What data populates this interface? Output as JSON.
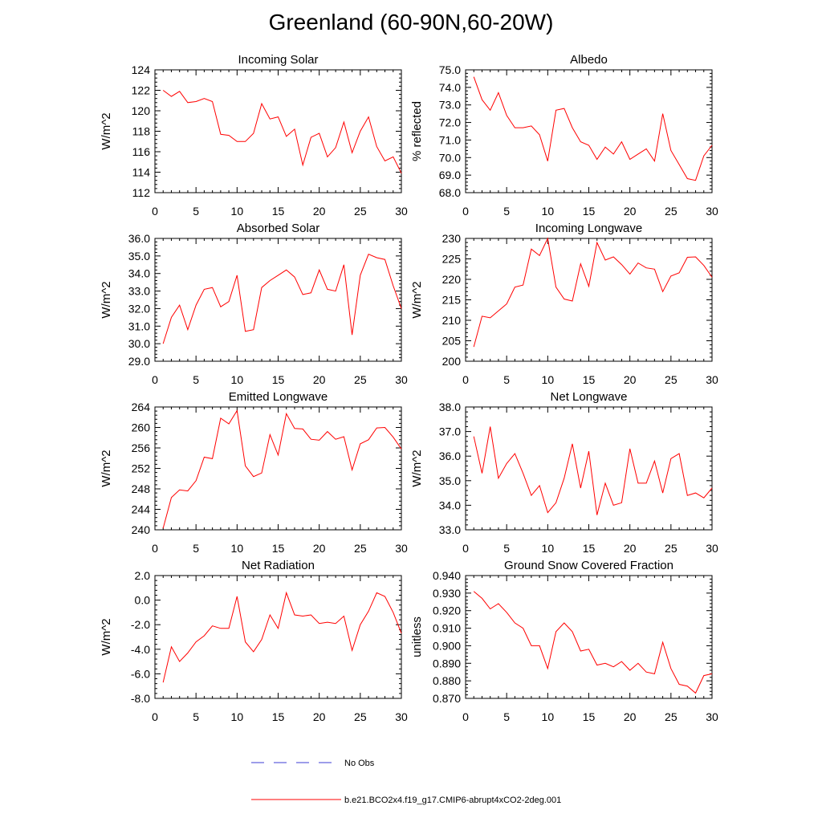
{
  "title": "Greenland (60-90N,60-20W)",
  "legend": [
    {
      "label": "No Obs",
      "color": "#3b3bd6",
      "dash": true
    },
    {
      "label": "b.e21.BCO2x4.f19_g17.CMIP6-abrupt4xCO2-2deg.001",
      "color": "#ff0000",
      "dash": false
    }
  ],
  "chart_data": [
    {
      "type": "line",
      "title": "Incoming Solar",
      "ylabel": "W/m^2",
      "xlim": [
        0,
        30
      ],
      "ylim": [
        112,
        124
      ],
      "xticks": [
        0,
        5,
        10,
        15,
        20,
        25,
        30
      ],
      "yticks": [
        112,
        114,
        116,
        118,
        120,
        122,
        124
      ],
      "ytick_labels": [
        "112",
        "114",
        "116",
        "118",
        "120",
        "122",
        "124"
      ],
      "series": [
        {
          "name": "b.e21.BCO2x4.f19_g17.CMIP6-abrupt4xCO2-2deg.001",
          "color": "#ff0000",
          "x": [
            1,
            2,
            3,
            4,
            5,
            6,
            7,
            8,
            9,
            10,
            11,
            12,
            13,
            14,
            15,
            16,
            17,
            18,
            19,
            20,
            21,
            22,
            23,
            24,
            25,
            26,
            27,
            28,
            29,
            30
          ],
          "y": [
            122.0,
            121.4,
            121.9,
            120.8,
            120.9,
            121.2,
            120.9,
            117.7,
            117.6,
            117.0,
            117.0,
            117.8,
            120.7,
            119.2,
            119.4,
            117.5,
            118.2,
            114.7,
            117.4,
            117.8,
            115.5,
            116.4,
            118.9,
            115.9,
            118.0,
            119.4,
            116.5,
            115.1,
            115.5,
            113.9
          ]
        }
      ]
    },
    {
      "type": "line",
      "title": "Albedo",
      "ylabel": "% reflected",
      "xlim": [
        0,
        30
      ],
      "ylim": [
        68.0,
        75.0
      ],
      "xticks": [
        0,
        5,
        10,
        15,
        20,
        25,
        30
      ],
      "yticks": [
        68,
        69,
        70,
        71,
        72,
        73,
        74,
        75
      ],
      "ytick_labels": [
        "68.0",
        "69.0",
        "70.0",
        "71.0",
        "72.0",
        "73.0",
        "74.0",
        "75.0"
      ],
      "series": [
        {
          "name": "b.e21.BCO2x4.f19_g17.CMIP6-abrupt4xCO2-2deg.001",
          "color": "#ff0000",
          "x": [
            1,
            2,
            3,
            4,
            5,
            6,
            7,
            8,
            9,
            10,
            11,
            12,
            13,
            14,
            15,
            16,
            17,
            18,
            19,
            20,
            21,
            22,
            23,
            24,
            25,
            26,
            27,
            28,
            29,
            30
          ],
          "y": [
            74.6,
            73.3,
            72.7,
            73.7,
            72.4,
            71.7,
            71.7,
            71.8,
            71.3,
            69.8,
            72.7,
            72.8,
            71.7,
            70.9,
            70.7,
            69.9,
            70.6,
            70.2,
            70.9,
            69.9,
            70.2,
            70.5,
            69.8,
            72.5,
            70.4,
            69.6,
            68.8,
            68.7,
            70.1,
            70.7
          ]
        }
      ]
    },
    {
      "type": "line",
      "title": "Absorbed Solar",
      "ylabel": "W/m^2",
      "xlim": [
        0,
        30
      ],
      "ylim": [
        29.0,
        36.0
      ],
      "xticks": [
        0,
        5,
        10,
        15,
        20,
        25,
        30
      ],
      "yticks": [
        29,
        30,
        31,
        32,
        33,
        34,
        35,
        36
      ],
      "ytick_labels": [
        "29.0",
        "30.0",
        "31.0",
        "32.0",
        "33.0",
        "34.0",
        "35.0",
        "36.0"
      ],
      "series": [
        {
          "name": "b.e21.BCO2x4.f19_g17.CMIP6-abrupt4xCO2-2deg.001",
          "color": "#ff0000",
          "x": [
            1,
            2,
            3,
            4,
            5,
            6,
            7,
            8,
            9,
            10,
            11,
            12,
            13,
            14,
            15,
            16,
            17,
            18,
            19,
            20,
            21,
            22,
            23,
            24,
            25,
            26,
            27,
            28,
            29,
            30
          ],
          "y": [
            30.0,
            31.5,
            32.2,
            30.8,
            32.2,
            33.1,
            33.2,
            32.1,
            32.4,
            33.9,
            30.7,
            30.8,
            33.2,
            33.6,
            33.9,
            34.2,
            33.8,
            32.8,
            32.9,
            34.2,
            33.1,
            33.0,
            34.5,
            30.5,
            33.9,
            35.1,
            34.9,
            34.8,
            33.3,
            32.0
          ]
        }
      ]
    },
    {
      "type": "line",
      "title": "Incoming Longwave",
      "ylabel": "W/m^2",
      "xlim": [
        0,
        30
      ],
      "ylim": [
        200,
        230
      ],
      "xticks": [
        0,
        5,
        10,
        15,
        20,
        25,
        30
      ],
      "yticks": [
        200,
        205,
        210,
        215,
        220,
        225,
        230
      ],
      "ytick_labels": [
        "200",
        "205",
        "210",
        "215",
        "220",
        "225",
        "230"
      ],
      "series": [
        {
          "name": "b.e21.BCO2x4.f19_g17.CMIP6-abrupt4xCO2-2deg.001",
          "color": "#ff0000",
          "x": [
            1,
            2,
            3,
            4,
            5,
            6,
            7,
            8,
            9,
            10,
            11,
            12,
            13,
            14,
            15,
            16,
            17,
            18,
            19,
            20,
            21,
            22,
            23,
            24,
            25,
            26,
            27,
            28,
            29,
            30
          ],
          "y": [
            203.5,
            211.0,
            210.6,
            212.3,
            214.0,
            218.1,
            218.6,
            227.4,
            225.8,
            230.0,
            218.1,
            215.2,
            214.7,
            223.8,
            218.3,
            229.0,
            224.7,
            225.5,
            223.6,
            221.3,
            224.0,
            222.8,
            222.5,
            217.0,
            220.8,
            221.6,
            225.4,
            225.5,
            223.4,
            220.5
          ]
        }
      ]
    },
    {
      "type": "line",
      "title": "Emitted Longwave",
      "ylabel": "W/m^2",
      "xlim": [
        0,
        30
      ],
      "ylim": [
        240,
        264
      ],
      "xticks": [
        0,
        5,
        10,
        15,
        20,
        25,
        30
      ],
      "yticks": [
        240,
        244,
        248,
        252,
        256,
        260,
        264
      ],
      "ytick_labels": [
        "240",
        "244",
        "248",
        "252",
        "256",
        "260",
        "264"
      ],
      "series": [
        {
          "name": "b.e21.BCO2x4.f19_g17.CMIP6-abrupt4xCO2-2deg.001",
          "color": "#ff0000",
          "x": [
            1,
            2,
            3,
            4,
            5,
            6,
            7,
            8,
            9,
            10,
            11,
            12,
            13,
            14,
            15,
            16,
            17,
            18,
            19,
            20,
            21,
            22,
            23,
            24,
            25,
            26,
            27,
            28,
            29,
            30
          ],
          "y": [
            240.3,
            246.3,
            247.8,
            247.6,
            249.6,
            254.2,
            253.9,
            261.8,
            260.7,
            263.3,
            252.5,
            250.4,
            251.1,
            258.6,
            254.6,
            262.7,
            259.8,
            259.7,
            257.7,
            257.5,
            259.2,
            257.7,
            258.2,
            251.7,
            256.8,
            257.6,
            259.9,
            260.0,
            258.1,
            255.8
          ]
        }
      ]
    },
    {
      "type": "line",
      "title": "Net Longwave",
      "ylabel": "W/m^2",
      "xlim": [
        0,
        30
      ],
      "ylim": [
        33.0,
        38.0
      ],
      "xticks": [
        0,
        5,
        10,
        15,
        20,
        25,
        30
      ],
      "yticks": [
        33,
        34,
        35,
        36,
        37,
        38
      ],
      "ytick_labels": [
        "33.0",
        "34.0",
        "35.0",
        "36.0",
        "37.0",
        "38.0"
      ],
      "series": [
        {
          "name": "b.e21.BCO2x4.f19_g17.CMIP6-abrupt4xCO2-2deg.001",
          "color": "#ff0000",
          "x": [
            1,
            2,
            3,
            4,
            5,
            6,
            7,
            8,
            9,
            10,
            11,
            12,
            13,
            14,
            15,
            16,
            17,
            18,
            19,
            20,
            21,
            22,
            23,
            24,
            25,
            26,
            27,
            28,
            29,
            30
          ],
          "y": [
            36.8,
            35.3,
            37.2,
            35.1,
            35.7,
            36.1,
            35.3,
            34.4,
            34.8,
            33.7,
            34.1,
            35.1,
            36.5,
            34.7,
            36.2,
            33.6,
            34.9,
            34.0,
            34.1,
            36.3,
            34.9,
            34.9,
            35.8,
            34.5,
            35.9,
            36.1,
            34.4,
            34.5,
            34.3,
            34.7
          ]
        }
      ]
    },
    {
      "type": "line",
      "title": "Net Radiation",
      "ylabel": "W/m^2",
      "xlim": [
        0,
        30
      ],
      "ylim": [
        -8.0,
        2.0
      ],
      "xticks": [
        0,
        5,
        10,
        15,
        20,
        25,
        30
      ],
      "yticks": [
        -8,
        -6,
        -4,
        -2,
        0,
        2
      ],
      "ytick_labels": [
        "-8.0",
        "-6.0",
        "-4.0",
        "-2.0",
        "0.0",
        "2.0"
      ],
      "series": [
        {
          "name": "b.e21.BCO2x4.f19_g17.CMIP6-abrupt4xCO2-2deg.001",
          "color": "#ff0000",
          "x": [
            1,
            2,
            3,
            4,
            5,
            6,
            7,
            8,
            9,
            10,
            11,
            12,
            13,
            14,
            15,
            16,
            17,
            18,
            19,
            20,
            21,
            22,
            23,
            24,
            25,
            26,
            27,
            28,
            29,
            30
          ],
          "y": [
            -6.7,
            -3.8,
            -5.0,
            -4.3,
            -3.4,
            -2.9,
            -2.1,
            -2.3,
            -2.3,
            0.3,
            -3.4,
            -4.2,
            -3.2,
            -1.2,
            -2.3,
            0.6,
            -1.2,
            -1.3,
            -1.2,
            -1.9,
            -1.8,
            -1.9,
            -1.3,
            -4.1,
            -2.0,
            -0.9,
            0.6,
            0.3,
            -1.0,
            -2.7
          ]
        }
      ]
    },
    {
      "type": "line",
      "title": "Ground Snow Covered Fraction",
      "ylabel": "unitless",
      "xlim": [
        0,
        30
      ],
      "ylim": [
        0.87,
        0.94
      ],
      "xticks": [
        0,
        5,
        10,
        15,
        20,
        25,
        30
      ],
      "yticks": [
        0.87,
        0.88,
        0.89,
        0.9,
        0.91,
        0.92,
        0.93,
        0.94
      ],
      "ytick_labels": [
        "0.870",
        "0.880",
        "0.890",
        "0.900",
        "0.910",
        "0.920",
        "0.930",
        "0.940"
      ],
      "series": [
        {
          "name": "b.e21.BCO2x4.f19_g17.CMIP6-abrupt4xCO2-2deg.001",
          "color": "#ff0000",
          "x": [
            1,
            2,
            3,
            4,
            5,
            6,
            7,
            8,
            9,
            10,
            11,
            12,
            13,
            14,
            15,
            16,
            17,
            18,
            19,
            20,
            21,
            22,
            23,
            24,
            25,
            26,
            27,
            28,
            29,
            30
          ],
          "y": [
            0.931,
            0.927,
            0.921,
            0.924,
            0.919,
            0.913,
            0.91,
            0.9,
            0.9,
            0.887,
            0.908,
            0.913,
            0.908,
            0.897,
            0.898,
            0.889,
            0.89,
            0.888,
            0.891,
            0.886,
            0.89,
            0.885,
            0.884,
            0.902,
            0.887,
            0.878,
            0.877,
            0.873,
            0.883,
            0.884
          ]
        }
      ]
    }
  ]
}
